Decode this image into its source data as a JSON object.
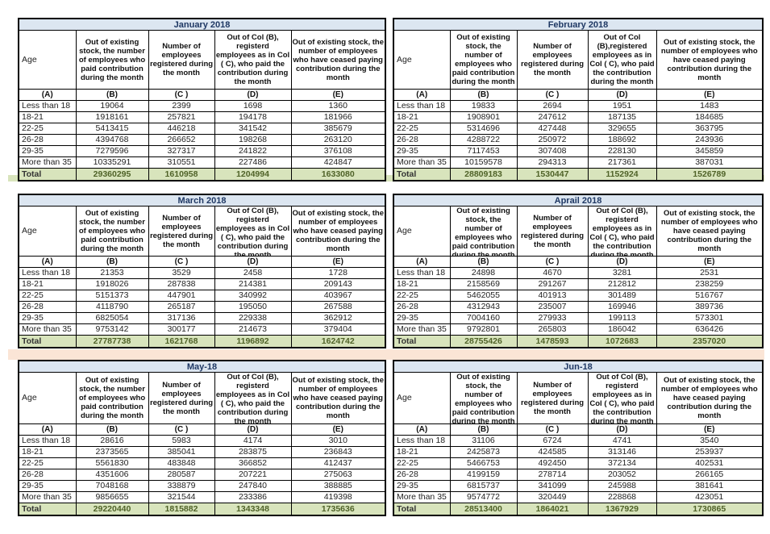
{
  "page": {
    "description": "Monthly employee contribution statistics tables, January 2018 to June 2018",
    "background": "#ffffff"
  },
  "colors": {
    "title_bg": "#dce6f1",
    "total_bg": "#d8e4bc",
    "green_band": "#d8e4bc",
    "peach_band": "#fbe5d6",
    "gray_patch": "#ededed",
    "title_text": "#1f3864",
    "total_text": "#4f6228",
    "border": "#000000"
  },
  "labels": {
    "age_header": "Age",
    "letter_row": [
      "(A)",
      "(B)",
      "(C )",
      "(D)",
      "(E)"
    ],
    "total_label": "Total"
  },
  "tables": [
    {
      "title": "January 2018",
      "headers": {
        "b": "Out of existing stock, the number of employees who paid contribution during the month",
        "c": "Number of employees registered during the month",
        "d": "Out of Col (B), registerd employees as in Col ( C), who paid the contribution during the month",
        "e": "Out of existing stock, the number of  employees who have ceased paying contribution during the month"
      },
      "rows": [
        [
          "Less than 18",
          "19064",
          "2399",
          "1698",
          "1360"
        ],
        [
          "18-21",
          "1918161",
          "257821",
          "194178",
          "181966"
        ],
        [
          "22-25",
          "5413415",
          "446218",
          "341542",
          "385679"
        ],
        [
          "26-28",
          "4394768",
          "266652",
          "198268",
          "263120"
        ],
        [
          "29-35",
          "7279596",
          "327317",
          "241822",
          "376108"
        ],
        [
          "More than 35",
          "10335291",
          "310551",
          "227486",
          "424847"
        ]
      ],
      "total": [
        "Total",
        "29360295",
        "1610958",
        "1204994",
        "1633080"
      ]
    },
    {
      "title": "February 2018",
      "headers": {
        "b": "Out of existing stock, the number of employees who paid contribution during the month",
        "c": "Number of employees registered during the month",
        "d": "Out of Col (B),registered employees as in Col ( C), who paid the contribution during the month",
        "e": "Out of existing stock, the number of  employees who have ceased paying contribution during the month"
      },
      "rows": [
        [
          "Less than 18",
          "19833",
          "2694",
          "1951",
          "1483"
        ],
        [
          "18-21",
          "1908901",
          "247612",
          "187135",
          "184685"
        ],
        [
          "22-25",
          "5314696",
          "427448",
          "329655",
          "363795"
        ],
        [
          "26-28",
          "4288722",
          "250972",
          "188692",
          "243936"
        ],
        [
          "29-35",
          "7117453",
          "307408",
          "228130",
          "345859"
        ],
        [
          "More than 35",
          "10159578",
          "294313",
          "217361",
          "387031"
        ]
      ],
      "total": [
        "Total",
        "28809183",
        "1530447",
        "1152924",
        "1526789"
      ]
    },
    {
      "title": "March 2018",
      "headers": {
        "b": "Out of existing stock, the number of employees who paid contribution during the month",
        "c": "Number of employees registered during the month",
        "d": "Out of Col (B), registerd employees as in Col ( C), who paid the contribution during the month",
        "e": "Out of existing stock, the number of  employees who have ceased paying contribution during the month"
      },
      "rows": [
        [
          "Less than 18",
          "21353",
          "3529",
          "2458",
          "1728"
        ],
        [
          "18-21",
          "1918026",
          "287838",
          "214381",
          "209143"
        ],
        [
          "22-25",
          "5151373",
          "447901",
          "340992",
          "403967"
        ],
        [
          "26-28",
          "4118790",
          "265187",
          "195050",
          "267588"
        ],
        [
          "29-35",
          "6825054",
          "317136",
          "229338",
          "362912"
        ],
        [
          "More than 35",
          "9753142",
          "300177",
          "214673",
          "379404"
        ]
      ],
      "total": [
        "Total",
        "27787738",
        "1621768",
        "1196892",
        "1624742"
      ]
    },
    {
      "title": "Aprail 2018",
      "headers": {
        "b": "Out of existing stock, the number of employees who paid contribution during the month",
        "c": "Number of employees registered during the month",
        "d": "Out of Col (B), registerd employees as in Col ( C), who paid the contribution during the month",
        "e": "Out of existing stock, the number of  employees who have ceased paying contribution during the month"
      },
      "rows": [
        [
          "Less than 18",
          "24898",
          "4670",
          "3281",
          "2531"
        ],
        [
          "18-21",
          "2158569",
          "291267",
          "212812",
          "238259"
        ],
        [
          "22-25",
          "5462055",
          "401913",
          "301489",
          "516767"
        ],
        [
          "26-28",
          "4312943",
          "235007",
          "169946",
          "389736"
        ],
        [
          "29-35",
          "7004160",
          "279933",
          "199113",
          "573301"
        ],
        [
          "More than 35",
          "9792801",
          "265803",
          "186042",
          "636426"
        ]
      ],
      "total": [
        "Total",
        "28755426",
        "1478593",
        "1072683",
        "2357020"
      ]
    },
    {
      "title": "May-18",
      "headers": {
        "b": "Out of existing stock, the number of employees who paid contribution during the month",
        "c": "Number of employees registered during the month",
        "d": "Out of Col (B), registerd employees as in Col ( C), who paid the contribution during the month",
        "e": "Out of existing stock, the number of  employees who have ceased paying contribution during the month"
      },
      "rows": [
        [
          "Less than 18",
          "28616",
          "5983",
          "4174",
          "3010"
        ],
        [
          "18-21",
          "2373565",
          "385041",
          "283875",
          "236843"
        ],
        [
          "22-25",
          "5561830",
          "483848",
          "366852",
          "412437"
        ],
        [
          "26-28",
          "4351606",
          "280587",
          "207221",
          "275063"
        ],
        [
          "29-35",
          "7048168",
          "338879",
          "247840",
          "388885"
        ],
        [
          "More than 35",
          "9856655",
          "321544",
          "233386",
          "419398"
        ]
      ],
      "total": [
        "Total",
        "29220440",
        "1815882",
        "1343348",
        "1735636"
      ]
    },
    {
      "title": "Jun-18",
      "headers": {
        "b": "Out of existing stock, the number of employees who paid contribution during the month",
        "c": "Number of employees registered during the month",
        "d": "Out of Col (B), registerd employees as in Col ( C), who paid the contribution during the month",
        "e": "Out of existing stock, the number of  employees who have ceased paying contribution during the month"
      },
      "rows": [
        [
          "Less than 18",
          "31106",
          "6724",
          "4741",
          "3540"
        ],
        [
          "18-21",
          "2425873",
          "424585",
          "313146",
          "253937"
        ],
        [
          "22-25",
          "5466753",
          "492450",
          "372134",
          "402531"
        ],
        [
          "26-28",
          "4199159",
          "278714",
          "203052",
          "266165"
        ],
        [
          "29-35",
          "6815737",
          "341099",
          "245988",
          "381641"
        ],
        [
          "More than 35",
          "9574772",
          "320449",
          "228868",
          "423051"
        ]
      ],
      "total": [
        "Total",
        "28513400",
        "1864021",
        "1367929",
        "1730865"
      ]
    }
  ]
}
